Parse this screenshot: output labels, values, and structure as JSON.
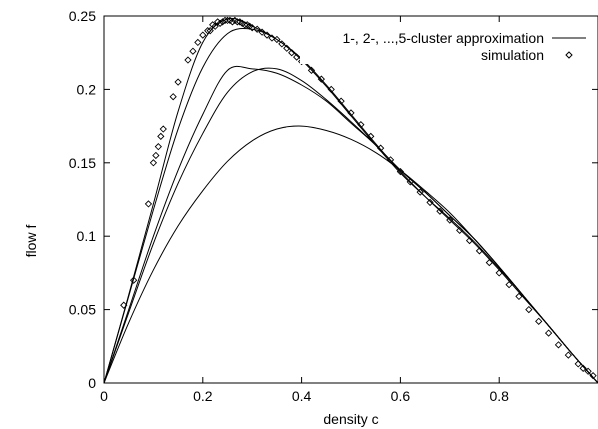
{
  "chart_data": {
    "type": "line",
    "title": "",
    "xlabel": "density c",
    "ylabel": "flow f",
    "xlim": [
      0,
      1
    ],
    "ylim": [
      0,
      0.25
    ],
    "x_ticks": [
      0,
      0.2,
      0.4,
      0.6,
      0.8
    ],
    "x_tick_labels": [
      "0",
      "0.2",
      "0.4",
      "0.6",
      "0.8"
    ],
    "y_ticks": [
      0,
      0.05,
      0.1,
      0.15,
      0.2,
      0.25
    ],
    "y_tick_labels": [
      "0",
      "0.05",
      "0.1",
      "0.15",
      "0.2",
      "0.25"
    ],
    "grid": false,
    "legend_position": "top-right",
    "series": [
      {
        "name": "1-, 2-, ...,5-cluster approximation",
        "style": "line",
        "color": "#000000",
        "curves": [
          {
            "x": [
              0,
              0.05,
              0.1,
              0.15,
              0.2,
              0.25,
              0.3,
              0.35,
              0.4,
              0.45,
              0.5,
              0.55,
              0.6,
              0.65,
              0.7,
              0.75,
              0.8,
              0.85,
              0.9,
              0.95,
              1.0
            ],
            "y": [
              0,
              0.041,
              0.077,
              0.107,
              0.131,
              0.151,
              0.165,
              0.173,
              0.175,
              0.172,
              0.166,
              0.157,
              0.145,
              0.131,
              0.116,
              0.098,
              0.079,
              0.059,
              0.039,
              0.019,
              0
            ]
          },
          {
            "x": [
              0,
              0.05,
              0.1,
              0.15,
              0.2,
              0.25,
              0.3,
              0.35,
              0.4,
              0.45,
              0.5,
              0.55,
              0.6,
              0.65,
              0.7,
              0.75,
              0.8,
              0.85,
              0.9,
              0.95,
              1.0
            ],
            "y": [
              0,
              0.048,
              0.095,
              0.136,
              0.17,
              0.198,
              0.212,
              0.214,
              0.206,
              0.193,
              0.178,
              0.162,
              0.145,
              0.13,
              0.114,
              0.098,
              0.079,
              0.059,
              0.039,
              0.019,
              0
            ]
          },
          {
            "x": [
              0,
              0.05,
              0.1,
              0.15,
              0.2,
              0.25,
              0.3,
              0.35,
              0.4,
              0.45,
              0.5,
              0.55,
              0.6,
              0.65,
              0.7,
              0.75,
              0.8,
              0.85,
              0.9,
              0.95,
              1.0
            ],
            "y": [
              0,
              0.05,
              0.1,
              0.145,
              0.183,
              0.213,
              0.214,
              0.211,
              0.203,
              0.192,
              0.177,
              0.162,
              0.145,
              0.13,
              0.114,
              0.098,
              0.079,
              0.059,
              0.039,
              0.019,
              0
            ]
          },
          {
            "x": [
              0,
              0.05,
              0.1,
              0.15,
              0.2,
              0.25,
              0.3,
              0.35,
              0.4,
              0.45,
              0.5,
              0.55,
              0.6,
              0.65,
              0.7,
              0.75,
              0.8,
              0.85,
              0.9,
              0.95,
              1.0
            ],
            "y": [
              0,
              0.059,
              0.118,
              0.173,
              0.215,
              0.238,
              0.241,
              0.234,
              0.22,
              0.202,
              0.182,
              0.162,
              0.143,
              0.127,
              0.112,
              0.096,
              0.078,
              0.059,
              0.039,
              0.019,
              0
            ]
          },
          {
            "x": [
              0,
              0.05,
              0.1,
              0.15,
              0.2,
              0.25,
              0.3,
              0.35,
              0.4,
              0.45,
              0.5,
              0.55,
              0.6,
              0.65,
              0.7,
              0.75,
              0.8,
              0.85,
              0.9,
              0.95,
              1.0
            ],
            "y": [
              0,
              0.06,
              0.122,
              0.185,
              0.232,
              0.248,
              0.243,
              0.234,
              0.221,
              0.203,
              0.183,
              0.163,
              0.144,
              0.127,
              0.111,
              0.095,
              0.077,
              0.058,
              0.039,
              0.019,
              0
            ]
          }
        ]
      },
      {
        "name": "simulation",
        "style": "points",
        "marker": "diamond",
        "color": "#000000",
        "x": [
          0.04,
          0.06,
          0.09,
          0.1,
          0.105,
          0.11,
          0.115,
          0.12,
          0.14,
          0.15,
          0.17,
          0.18,
          0.19,
          0.2,
          0.21,
          0.215,
          0.22,
          0.225,
          0.23,
          0.235,
          0.24,
          0.245,
          0.25,
          0.255,
          0.26,
          0.265,
          0.27,
          0.275,
          0.28,
          0.285,
          0.29,
          0.295,
          0.3,
          0.31,
          0.32,
          0.33,
          0.34,
          0.35,
          0.36,
          0.37,
          0.38,
          0.39,
          0.4,
          0.42,
          0.44,
          0.46,
          0.48,
          0.5,
          0.52,
          0.54,
          0.56,
          0.58,
          0.6,
          0.62,
          0.64,
          0.66,
          0.68,
          0.7,
          0.72,
          0.74,
          0.76,
          0.78,
          0.8,
          0.82,
          0.84,
          0.86,
          0.88,
          0.9,
          0.92,
          0.94,
          0.96,
          0.97,
          0.98,
          0.99
        ],
        "y": [
          0.053,
          0.07,
          0.122,
          0.15,
          0.155,
          0.161,
          0.168,
          0.173,
          0.195,
          0.205,
          0.22,
          0.226,
          0.232,
          0.237,
          0.24,
          0.24,
          0.244,
          0.243,
          0.246,
          0.245,
          0.246,
          0.247,
          0.247,
          0.247,
          0.246,
          0.247,
          0.246,
          0.246,
          0.245,
          0.244,
          0.244,
          0.243,
          0.242,
          0.241,
          0.239,
          0.237,
          0.235,
          0.234,
          0.231,
          0.228,
          0.225,
          0.222,
          0.219,
          0.213,
          0.207,
          0.2,
          0.192,
          0.184,
          0.176,
          0.168,
          0.16,
          0.152,
          0.144,
          0.137,
          0.13,
          0.123,
          0.117,
          0.111,
          0.104,
          0.097,
          0.09,
          0.082,
          0.075,
          0.067,
          0.059,
          0.05,
          0.042,
          0.034,
          0.026,
          0.019,
          0.013,
          0.01,
          0.008,
          0.005
        ]
      }
    ]
  }
}
